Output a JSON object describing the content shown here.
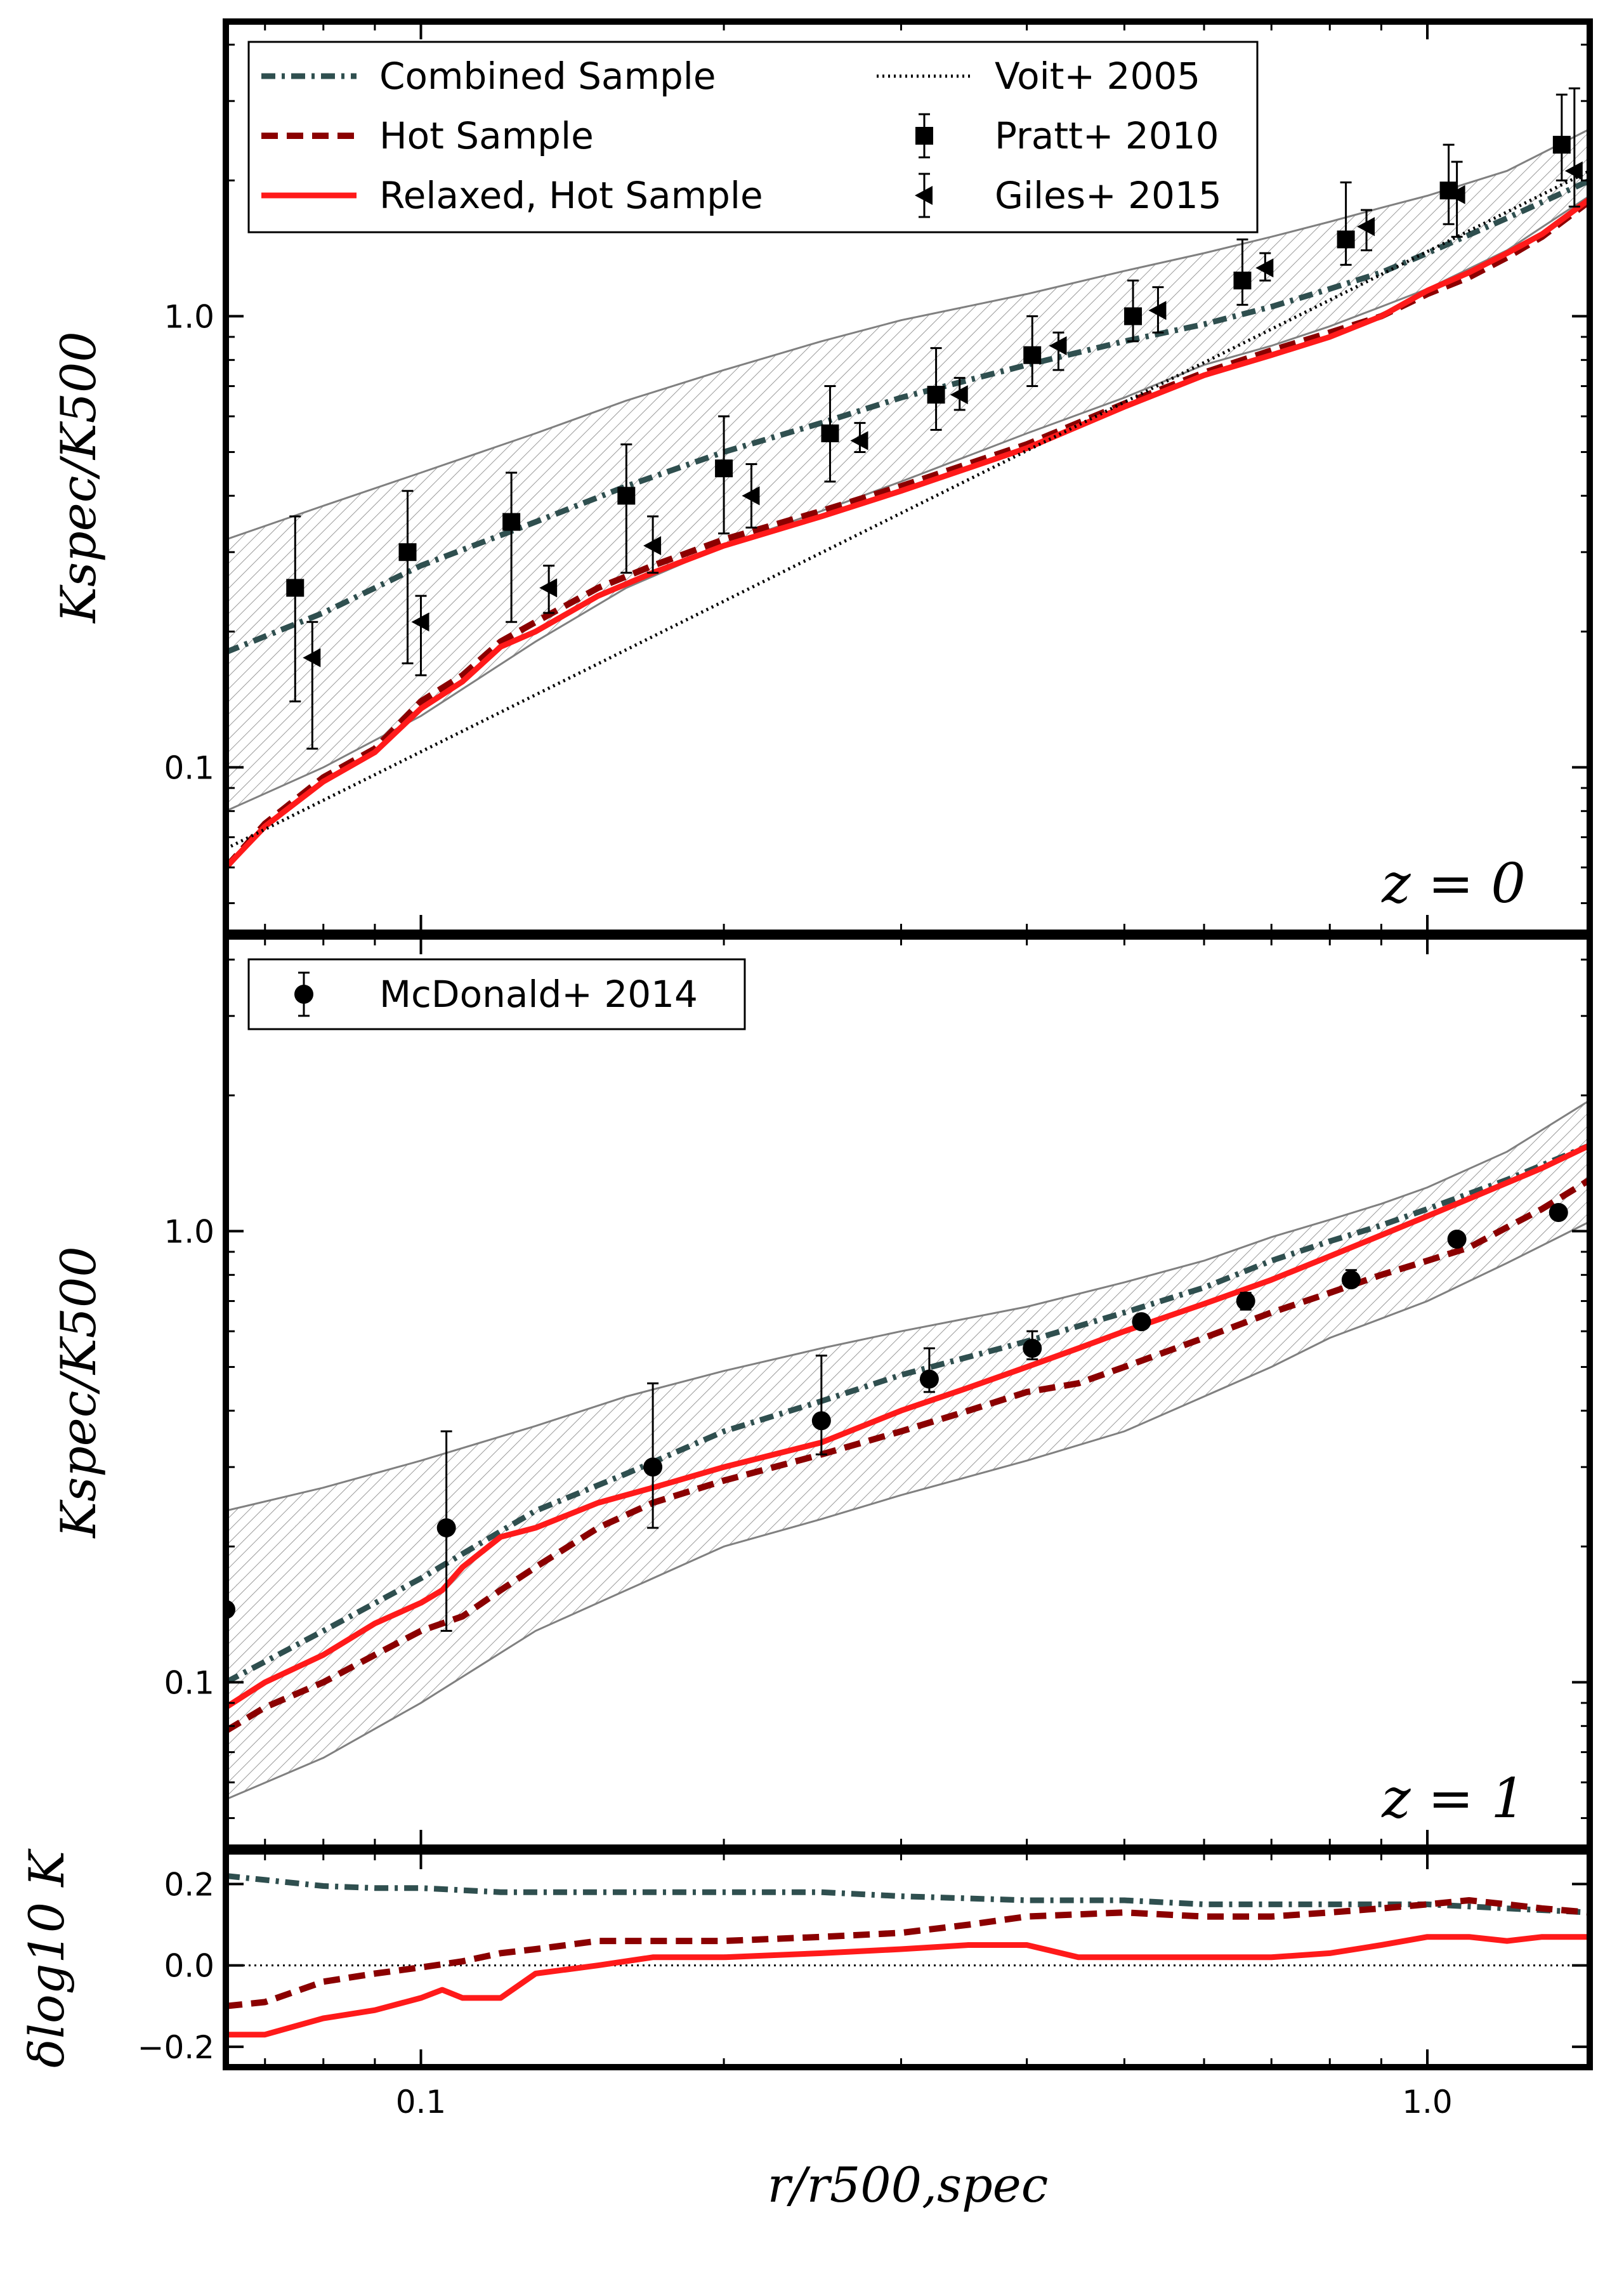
{
  "chart_data": [
    {
      "id": "z0",
      "type": "line",
      "panel_label": "z = 0",
      "xlabel": "r/r500,spec",
      "ylabel": "Kspec/K500",
      "xscale": "log",
      "yscale": "log",
      "xlim": [
        0.064,
        1.45
      ],
      "ylim": [
        0.043,
        4.5
      ],
      "yticks": [
        0.1,
        1.0
      ],
      "ytick_labels": [
        "0.1",
        "1.0"
      ],
      "legend_loc": "top",
      "band": {
        "x": [
          0.064,
          0.08,
          0.1,
          0.13,
          0.16,
          0.2,
          0.25,
          0.3,
          0.4,
          0.5,
          0.6,
          0.7,
          0.8,
          0.9,
          1.0,
          1.2,
          1.45
        ],
        "upper": [
          0.32,
          0.38,
          0.45,
          0.55,
          0.65,
          0.76,
          0.88,
          0.98,
          1.12,
          1.26,
          1.38,
          1.5,
          1.62,
          1.74,
          1.85,
          2.1,
          2.6
        ],
        "lower": [
          0.08,
          0.1,
          0.13,
          0.19,
          0.25,
          0.31,
          0.37,
          0.43,
          0.55,
          0.66,
          0.78,
          0.86,
          0.95,
          1.05,
          1.15,
          1.4,
          1.85
        ]
      },
      "series": [
        {
          "name": "Combined Sample",
          "style": "dashdot",
          "color": "#2f4f4f",
          "x": [
            0.064,
            0.08,
            0.1,
            0.13,
            0.16,
            0.2,
            0.25,
            0.3,
            0.4,
            0.5,
            0.6,
            0.7,
            0.8,
            0.9,
            1.0,
            1.2,
            1.45
          ],
          "y": [
            0.18,
            0.22,
            0.28,
            0.35,
            0.42,
            0.5,
            0.58,
            0.66,
            0.78,
            0.88,
            0.96,
            1.05,
            1.15,
            1.25,
            1.38,
            1.65,
            2.0
          ]
        },
        {
          "name": "Hot Sample",
          "style": "dashed",
          "color": "#8b0000",
          "x": [
            0.064,
            0.07,
            0.08,
            0.09,
            0.1,
            0.11,
            0.12,
            0.13,
            0.15,
            0.17,
            0.2,
            0.25,
            0.3,
            0.4,
            0.5,
            0.6,
            0.7,
            0.8,
            0.9,
            1.0,
            1.1,
            1.2,
            1.3,
            1.45
          ],
          "y": [
            0.06,
            0.075,
            0.095,
            0.11,
            0.14,
            0.16,
            0.19,
            0.21,
            0.25,
            0.28,
            0.32,
            0.37,
            0.42,
            0.52,
            0.64,
            0.75,
            0.84,
            0.92,
            1.0,
            1.12,
            1.22,
            1.35,
            1.5,
            1.8
          ]
        },
        {
          "name": "Relaxed, Hot Sample",
          "style": "solid",
          "color": "#ff1a1a",
          "x": [
            0.064,
            0.07,
            0.08,
            0.09,
            0.1,
            0.11,
            0.12,
            0.13,
            0.15,
            0.17,
            0.2,
            0.25,
            0.3,
            0.4,
            0.5,
            0.6,
            0.7,
            0.8,
            0.9,
            1.0,
            1.1,
            1.2,
            1.3,
            1.45
          ],
          "y": [
            0.06,
            0.074,
            0.093,
            0.108,
            0.135,
            0.155,
            0.185,
            0.2,
            0.24,
            0.27,
            0.31,
            0.36,
            0.41,
            0.51,
            0.63,
            0.74,
            0.82,
            0.9,
            1.0,
            1.14,
            1.25,
            1.38,
            1.52,
            1.82
          ]
        },
        {
          "name": "Voit+ 2005",
          "style": "dotted",
          "color": "#000000",
          "x": [
            0.064,
            1.45
          ],
          "y": [
            0.066,
            2.1
          ]
        }
      ],
      "points": [
        {
          "name": "Pratt+ 2010",
          "marker": "square",
          "x": [
            0.075,
            0.097,
            0.123,
            0.16,
            0.2,
            0.255,
            0.325,
            0.405,
            0.51,
            0.655,
            0.83,
            1.05,
            1.36
          ],
          "y": [
            0.25,
            0.3,
            0.35,
            0.4,
            0.46,
            0.55,
            0.67,
            0.82,
            1.0,
            1.2,
            1.48,
            1.9,
            2.4
          ],
          "y_low": [
            0.14,
            0.17,
            0.21,
            0.27,
            0.33,
            0.43,
            0.56,
            0.7,
            0.88,
            1.06,
            1.3,
            1.6,
            2.0
          ],
          "y_high": [
            0.36,
            0.41,
            0.45,
            0.52,
            0.6,
            0.7,
            0.85,
            1.0,
            1.2,
            1.48,
            1.98,
            2.4,
            3.1
          ]
        },
        {
          "name": "Giles+ 2015",
          "marker": "triangle-left",
          "x": [
            0.078,
            0.1,
            0.134,
            0.17,
            0.213,
            0.273,
            0.343,
            0.43,
            0.54,
            0.69,
            0.87,
            1.07,
            1.4
          ],
          "y": [
            0.175,
            0.21,
            0.25,
            0.31,
            0.4,
            0.53,
            0.67,
            0.86,
            1.03,
            1.28,
            1.58,
            1.86,
            2.1
          ],
          "y_low": [
            0.11,
            0.16,
            0.22,
            0.27,
            0.34,
            0.5,
            0.62,
            0.76,
            0.92,
            1.2,
            1.4,
            1.5,
            1.75
          ],
          "y_high": [
            0.21,
            0.24,
            0.28,
            0.36,
            0.47,
            0.58,
            0.73,
            0.92,
            1.16,
            1.38,
            1.72,
            2.2,
            3.2
          ]
        }
      ]
    },
    {
      "id": "z1",
      "type": "line",
      "panel_label": "z = 1",
      "xlabel": "r/r500,spec",
      "ylabel": "Kspec/K500",
      "xscale": "log",
      "yscale": "log",
      "xlim": [
        0.064,
        1.45
      ],
      "ylim": [
        0.043,
        4.5
      ],
      "yticks": [
        0.1,
        1.0
      ],
      "ytick_labels": [
        "0.1",
        "1.0"
      ],
      "legend_loc": "upper left",
      "band": {
        "x": [
          0.064,
          0.08,
          0.1,
          0.13,
          0.16,
          0.2,
          0.25,
          0.3,
          0.4,
          0.5,
          0.6,
          0.7,
          0.8,
          0.9,
          1.0,
          1.2,
          1.45
        ],
        "upper": [
          0.24,
          0.27,
          0.31,
          0.37,
          0.43,
          0.49,
          0.55,
          0.6,
          0.68,
          0.77,
          0.86,
          0.97,
          1.06,
          1.15,
          1.25,
          1.5,
          1.95
        ],
        "lower": [
          0.055,
          0.068,
          0.09,
          0.13,
          0.16,
          0.2,
          0.23,
          0.26,
          0.31,
          0.36,
          0.43,
          0.5,
          0.58,
          0.64,
          0.7,
          0.85,
          1.05
        ]
      },
      "series": [
        {
          "name": "Combined Sample",
          "style": "dashdot",
          "color": "#2f4f4f",
          "x": [
            0.064,
            0.08,
            0.1,
            0.13,
            0.16,
            0.2,
            0.25,
            0.3,
            0.4,
            0.5,
            0.6,
            0.7,
            0.8,
            0.9,
            1.0,
            1.2,
            1.45
          ],
          "y": [
            0.1,
            0.13,
            0.17,
            0.24,
            0.29,
            0.36,
            0.42,
            0.48,
            0.57,
            0.66,
            0.75,
            0.86,
            0.95,
            1.03,
            1.12,
            1.3,
            1.55
          ]
        },
        {
          "name": "Hot Sample",
          "style": "dashed",
          "color": "#8b0000",
          "x": [
            0.064,
            0.07,
            0.08,
            0.09,
            0.1,
            0.11,
            0.12,
            0.13,
            0.15,
            0.17,
            0.2,
            0.25,
            0.3,
            0.35,
            0.4,
            0.45,
            0.5,
            0.6,
            0.7,
            0.8,
            0.9,
            1.0,
            1.1,
            1.2,
            1.3,
            1.45
          ],
          "y": [
            0.078,
            0.088,
            0.1,
            0.115,
            0.13,
            0.14,
            0.16,
            0.18,
            0.22,
            0.25,
            0.28,
            0.32,
            0.36,
            0.4,
            0.44,
            0.46,
            0.5,
            0.58,
            0.66,
            0.73,
            0.8,
            0.86,
            0.92,
            1.02,
            1.12,
            1.3
          ]
        },
        {
          "name": "Relaxed, Hot Sample",
          "style": "solid",
          "color": "#ff1a1a",
          "x": [
            0.064,
            0.07,
            0.08,
            0.09,
            0.1,
            0.105,
            0.11,
            0.12,
            0.13,
            0.15,
            0.17,
            0.2,
            0.25,
            0.3,
            0.35,
            0.4,
            0.45,
            0.5,
            0.6,
            0.7,
            0.8,
            0.9,
            1.0,
            1.1,
            1.2,
            1.3,
            1.45
          ],
          "y": [
            0.088,
            0.1,
            0.115,
            0.135,
            0.15,
            0.16,
            0.18,
            0.21,
            0.22,
            0.25,
            0.27,
            0.3,
            0.34,
            0.4,
            0.45,
            0.5,
            0.55,
            0.6,
            0.69,
            0.78,
            0.88,
            0.98,
            1.08,
            1.18,
            1.28,
            1.38,
            1.55
          ]
        }
      ],
      "points": [
        {
          "name": "McDonald+ 2014",
          "marker": "circle",
          "x": [
            0.064,
            0.106,
            0.17,
            0.25,
            0.32,
            0.405,
            0.52,
            0.66,
            0.84,
            1.07,
            1.35
          ],
          "y": [
            0.145,
            0.22,
            0.3,
            0.38,
            0.47,
            0.55,
            0.63,
            0.7,
            0.78,
            0.96,
            1.1
          ],
          "y_low": [
            0.145,
            0.13,
            0.22,
            0.32,
            0.44,
            0.52,
            0.61,
            0.67,
            0.76,
            0.94,
            1.08
          ],
          "y_high": [
            0.145,
            0.36,
            0.46,
            0.53,
            0.55,
            0.6,
            0.65,
            0.73,
            0.82,
            0.99,
            1.12
          ]
        }
      ]
    },
    {
      "id": "residual",
      "type": "line",
      "xlabel": "r/r500,spec",
      "ylabel": "δlog10 K",
      "xscale": "log",
      "xlim": [
        0.064,
        1.45
      ],
      "ylim": [
        -0.25,
        0.28
      ],
      "yticks": [
        -0.2,
        0.0,
        0.2
      ],
      "ytick_labels": [
        "−0.2",
        "0.0",
        "0.2"
      ],
      "xticks": [
        0.1,
        1.0
      ],
      "xtick_labels": [
        "0.1",
        "1.0"
      ],
      "reference_line": 0.0,
      "series": [
        {
          "name": "Combined Sample",
          "style": "dashdot",
          "color": "#2f4f4f",
          "x": [
            0.064,
            0.07,
            0.08,
            0.09,
            0.1,
            0.12,
            0.15,
            0.2,
            0.25,
            0.3,
            0.4,
            0.5,
            0.6,
            0.7,
            0.8,
            0.9,
            1.0,
            1.2,
            1.45
          ],
          "y": [
            0.22,
            0.21,
            0.195,
            0.19,
            0.19,
            0.18,
            0.18,
            0.18,
            0.18,
            0.17,
            0.16,
            0.16,
            0.15,
            0.15,
            0.15,
            0.15,
            0.15,
            0.14,
            0.13
          ]
        },
        {
          "name": "Hot Sample",
          "style": "dashed",
          "color": "#8b0000",
          "x": [
            0.064,
            0.07,
            0.08,
            0.09,
            0.1,
            0.11,
            0.12,
            0.13,
            0.15,
            0.17,
            0.2,
            0.25,
            0.3,
            0.35,
            0.4,
            0.5,
            0.6,
            0.7,
            0.8,
            0.9,
            1.0,
            1.1,
            1.2,
            1.3,
            1.45
          ],
          "y": [
            -0.1,
            -0.09,
            -0.04,
            -0.02,
            -0.005,
            0.01,
            0.03,
            0.04,
            0.06,
            0.06,
            0.06,
            0.07,
            0.08,
            0.1,
            0.12,
            0.13,
            0.12,
            0.12,
            0.13,
            0.14,
            0.15,
            0.16,
            0.15,
            0.14,
            0.13
          ]
        },
        {
          "name": "Relaxed, Hot Sample",
          "style": "solid",
          "color": "#ff1a1a",
          "x": [
            0.064,
            0.07,
            0.08,
            0.09,
            0.1,
            0.105,
            0.11,
            0.12,
            0.13,
            0.15,
            0.17,
            0.2,
            0.25,
            0.3,
            0.35,
            0.4,
            0.45,
            0.5,
            0.6,
            0.7,
            0.8,
            0.9,
            1.0,
            1.1,
            1.2,
            1.3,
            1.45
          ],
          "y": [
            -0.17,
            -0.17,
            -0.13,
            -0.11,
            -0.08,
            -0.06,
            -0.08,
            -0.08,
            -0.02,
            0.0,
            0.02,
            0.02,
            0.03,
            0.04,
            0.05,
            0.05,
            0.02,
            0.02,
            0.02,
            0.02,
            0.03,
            0.05,
            0.07,
            0.07,
            0.06,
            0.07,
            0.07
          ]
        }
      ]
    }
  ],
  "legend_top": [
    {
      "label": "Combined Sample",
      "kind": "line",
      "style": "dashdot",
      "color": "#2f4f4f"
    },
    {
      "label": "Hot Sample",
      "kind": "line",
      "style": "dashed",
      "color": "#8b0000"
    },
    {
      "label": "Relaxed, Hot Sample",
      "kind": "line",
      "style": "solid",
      "color": "#ff1a1a"
    },
    {
      "label": "Voit+ 2005",
      "kind": "line",
      "style": "dotted",
      "color": "#000000"
    },
    {
      "label": "Pratt+ 2010",
      "kind": "marker",
      "marker": "square",
      "color": "#000000"
    },
    {
      "label": "Giles+ 2015",
      "kind": "marker",
      "marker": "triangle-left",
      "color": "#000000"
    }
  ],
  "legend_mid": [
    {
      "label": "McDonald+ 2014",
      "kind": "marker",
      "marker": "circle",
      "color": "#000000"
    }
  ]
}
